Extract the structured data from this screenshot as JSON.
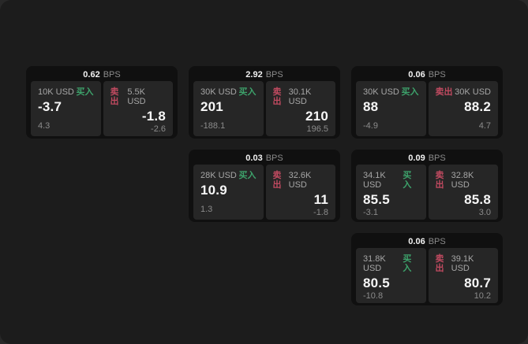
{
  "labels": {
    "buy": "买入",
    "sell": "卖出",
    "bps": "BPS"
  },
  "colors": {
    "page_bg": "#1c1c1c",
    "card_bg": "#101010",
    "panel_bg": "#262626",
    "buy_green": "#3da26b",
    "sell_red": "#c04a60"
  },
  "cards": [
    {
      "bps": "0.62",
      "row": 1,
      "col": 1,
      "buy": {
        "amount": "10K USD",
        "price": "-3.7",
        "delta": "4.3"
      },
      "sell": {
        "amount": "5.5K USD",
        "price": "-1.8",
        "delta": "-2.6"
      }
    },
    {
      "bps": "2.92",
      "row": 1,
      "col": 2,
      "buy": {
        "amount": "30K USD",
        "price": "201",
        "delta": "-188.1"
      },
      "sell": {
        "amount": "30.1K USD",
        "price": "210",
        "delta": "196.5"
      }
    },
    {
      "bps": "0.06",
      "row": 1,
      "col": 3,
      "buy": {
        "amount": "30K USD",
        "price": "88",
        "delta": "-4.9"
      },
      "sell": {
        "amount": "30K USD",
        "price": "88.2",
        "delta": "4.7"
      }
    },
    {
      "bps": "0.03",
      "row": 2,
      "col": 2,
      "buy": {
        "amount": "28K USD",
        "price": "10.9",
        "delta": "1.3"
      },
      "sell": {
        "amount": "32.6K USD",
        "price": "11",
        "delta": "-1.8"
      }
    },
    {
      "bps": "0.09",
      "row": 2,
      "col": 3,
      "buy": {
        "amount": "34.1K USD",
        "price": "85.5",
        "delta": "-3.1"
      },
      "sell": {
        "amount": "32.8K USD",
        "price": "85.8",
        "delta": "3.0"
      }
    },
    {
      "bps": "0.06",
      "row": 3,
      "col": 3,
      "buy": {
        "amount": "31.8K USD",
        "price": "80.5",
        "delta": "-10.8"
      },
      "sell": {
        "amount": "39.1K USD",
        "price": "80.7",
        "delta": "10.2"
      }
    }
  ]
}
